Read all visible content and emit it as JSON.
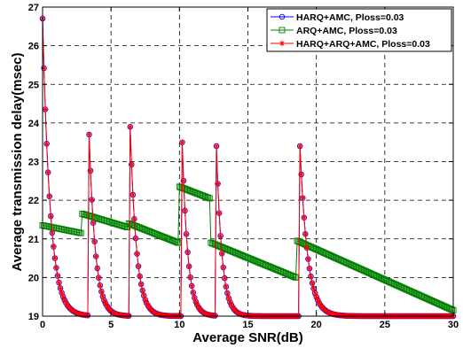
{
  "chart_data": {
    "type": "line",
    "title": "",
    "xlabel": "Average SNR(dB)",
    "ylabel": "Average transmission delay(msec)",
    "xlim": [
      0,
      30
    ],
    "ylim": [
      19,
      27
    ],
    "xticks": [
      0,
      5,
      10,
      15,
      20,
      25,
      30
    ],
    "yticks": [
      19,
      20,
      21,
      22,
      23,
      24,
      25,
      26,
      27
    ],
    "grid": true,
    "legend_position": "top-right",
    "series": [
      {
        "name": "HARQ+AMC, Ploss=0.03",
        "color": "#0000ff",
        "marker": "circle",
        "style": "spiky-decay",
        "segments": [
          {
            "x0": 0.0,
            "x1": 3.3,
            "peak": 26.7,
            "floor": 19.0,
            "tau": 0.55
          },
          {
            "x0": 3.4,
            "x1": 6.3,
            "peak": 23.7,
            "floor": 19.0,
            "tau": 0.45
          },
          {
            "x0": 6.4,
            "x1": 10.1,
            "peak": 23.9,
            "floor": 19.0,
            "tau": 0.45
          },
          {
            "x0": 10.2,
            "x1": 12.6,
            "peak": 23.5,
            "floor": 19.0,
            "tau": 0.4
          },
          {
            "x0": 12.7,
            "x1": 18.7,
            "peak": 23.4,
            "floor": 19.0,
            "tau": 0.4
          },
          {
            "x0": 18.8,
            "x1": 30.0,
            "peak": 23.4,
            "floor": 19.0,
            "tau": 0.55
          }
        ]
      },
      {
        "name": "ARQ+AMC, Ploss=0.03",
        "color": "#008000",
        "marker": "square",
        "style": "sawtooth-linear",
        "segments": [
          {
            "x0": 0.0,
            "x1": 2.8,
            "y0": 21.35,
            "y1": 21.15
          },
          {
            "x0": 2.9,
            "x1": 6.2,
            "y0": 21.65,
            "y1": 21.3
          },
          {
            "x0": 6.3,
            "x1": 9.9,
            "y0": 21.4,
            "y1": 20.9
          },
          {
            "x0": 10.0,
            "x1": 12.2,
            "y0": 22.35,
            "y1": 22.05
          },
          {
            "x0": 12.3,
            "x1": 18.5,
            "y0": 20.9,
            "y1": 20.0
          },
          {
            "x0": 18.6,
            "x1": 30.0,
            "y0": 20.95,
            "y1": 19.15
          }
        ]
      },
      {
        "name": "HARQ+ARQ+AMC, Ploss=0.03",
        "color": "#ff0000",
        "marker": "star",
        "style": "spiky-decay",
        "segments": [
          {
            "x0": 0.0,
            "x1": 3.3,
            "peak": 26.7,
            "floor": 19.0,
            "tau": 0.55
          },
          {
            "x0": 3.4,
            "x1": 6.3,
            "peak": 23.7,
            "floor": 19.0,
            "tau": 0.45
          },
          {
            "x0": 6.4,
            "x1": 10.1,
            "peak": 23.9,
            "floor": 19.0,
            "tau": 0.45
          },
          {
            "x0": 10.2,
            "x1": 12.6,
            "peak": 23.5,
            "floor": 19.0,
            "tau": 0.4
          },
          {
            "x0": 12.7,
            "x1": 18.7,
            "peak": 23.4,
            "floor": 19.0,
            "tau": 0.4
          },
          {
            "x0": 18.8,
            "x1": 30.0,
            "peak": 23.4,
            "floor": 19.0,
            "tau": 0.55
          }
        ]
      }
    ]
  }
}
